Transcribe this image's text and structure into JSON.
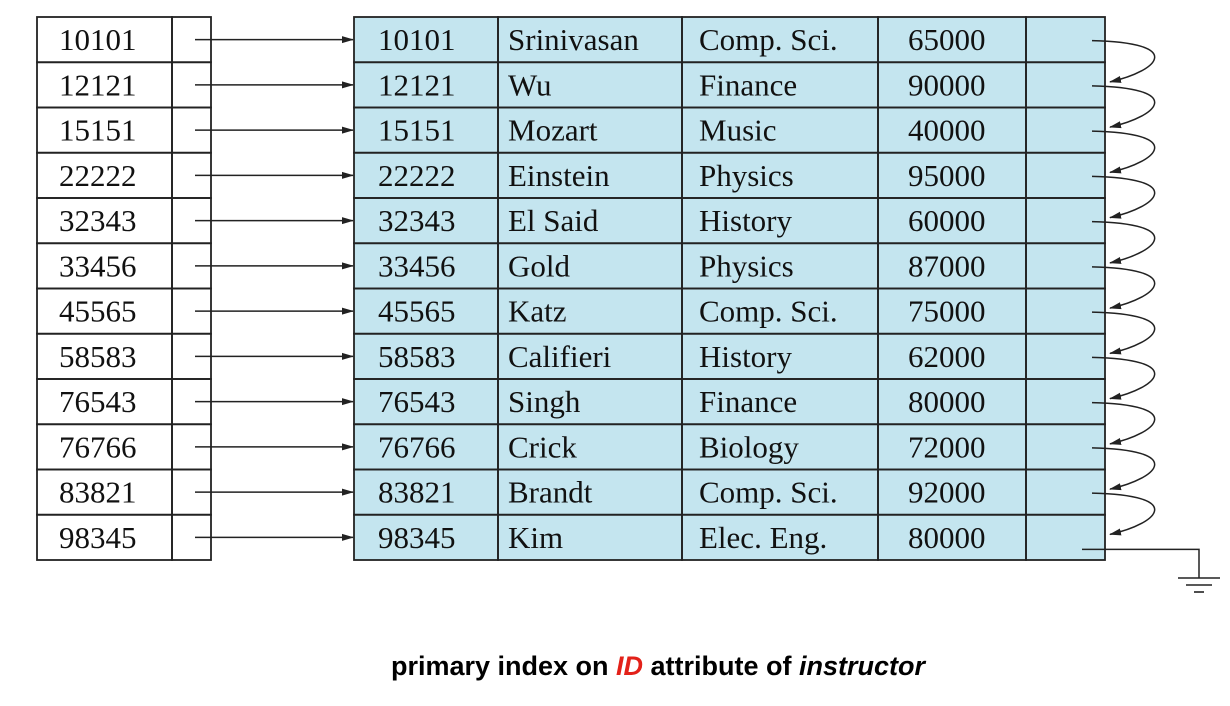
{
  "index_entries": [
    "10101",
    "12121",
    "15151",
    "22222",
    "32343",
    "33456",
    "45565",
    "58583",
    "76543",
    "76766",
    "83821",
    "98345"
  ],
  "records": [
    {
      "id": "10101",
      "name": "Srinivasan",
      "dept": "Comp. Sci.",
      "salary": "65000"
    },
    {
      "id": "12121",
      "name": "Wu",
      "dept": "Finance",
      "salary": "90000"
    },
    {
      "id": "15151",
      "name": "Mozart",
      "dept": "Music",
      "salary": "40000"
    },
    {
      "id": "22222",
      "name": "Einstein",
      "dept": "Physics",
      "salary": "95000"
    },
    {
      "id": "32343",
      "name": "El Said",
      "dept": "History",
      "salary": "60000"
    },
    {
      "id": "33456",
      "name": "Gold",
      "dept": "Physics",
      "salary": "87000"
    },
    {
      "id": "45565",
      "name": "Katz",
      "dept": "Comp. Sci.",
      "salary": "75000"
    },
    {
      "id": "58583",
      "name": "Califieri",
      "dept": "History",
      "salary": "62000"
    },
    {
      "id": "76543",
      "name": "Singh",
      "dept": "Finance",
      "salary": "80000"
    },
    {
      "id": "76766",
      "name": "Crick",
      "dept": "Biology",
      "salary": "72000"
    },
    {
      "id": "83821",
      "name": "Brandt",
      "dept": "Comp. Sci.",
      "salary": "92000"
    },
    {
      "id": "98345",
      "name": "Kim",
      "dept": "Elec. Eng.",
      "salary": "80000"
    }
  ],
  "colors": {
    "record_fill": "#c4e5ef",
    "line": "#222222",
    "highlight": "#e32119"
  },
  "caption": {
    "part1": "primary index on ",
    "highlight": "ID",
    "part2": " attribute of ",
    "relation": "instructor"
  }
}
